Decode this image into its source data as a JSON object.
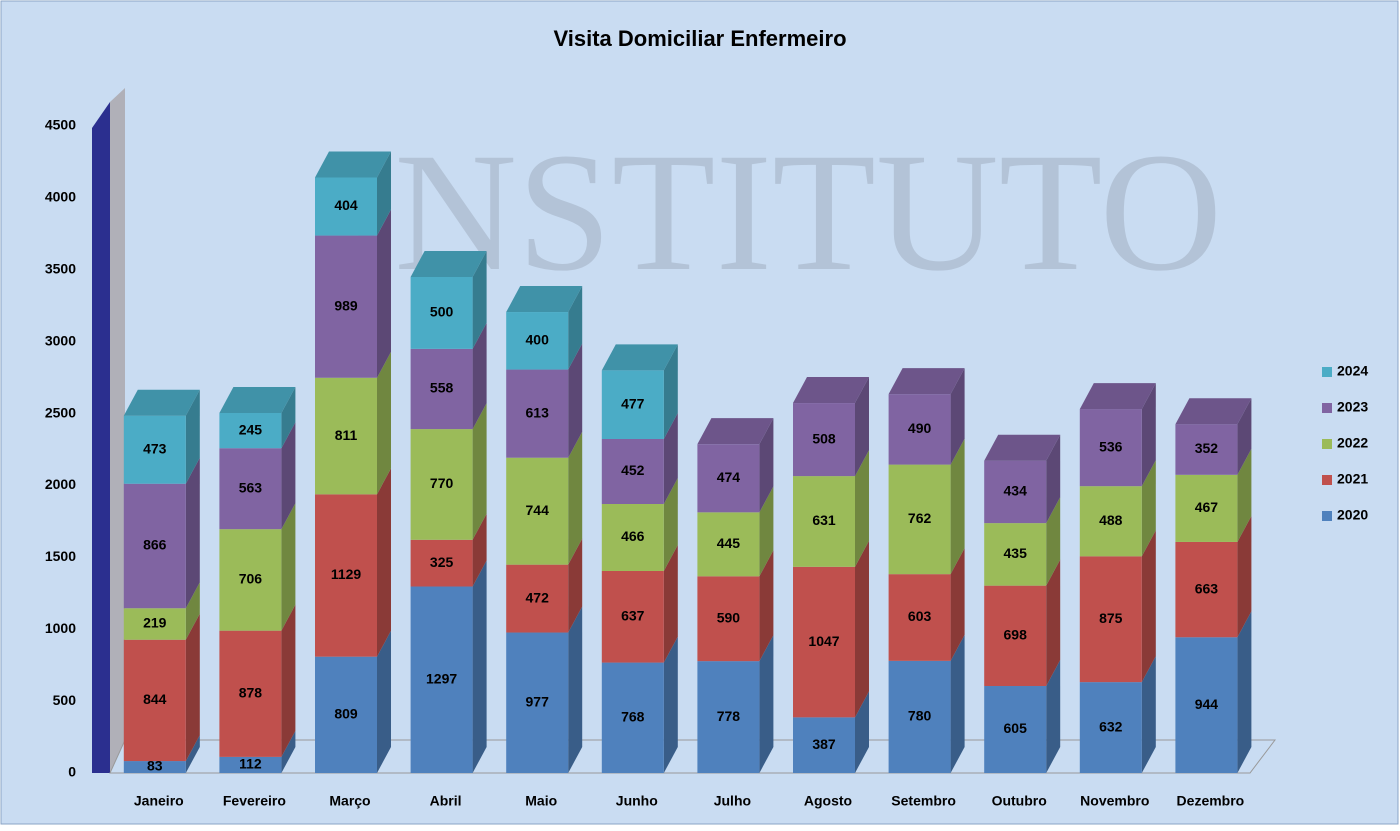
{
  "chart_data": {
    "type": "bar3d_stacked",
    "title": "Visita Domiciliar Enfermeiro",
    "watermark": "INSTITUTO",
    "categories": [
      "Janeiro",
      "Fevereiro",
      "Março",
      "Abril",
      "Maio",
      "Junho",
      "Julho",
      "Agosto",
      "Setembro",
      "Outubro",
      "Novembro",
      "Dezembro"
    ],
    "series": [
      {
        "name": "2020",
        "color": "#4f81bd",
        "values": [
          83,
          112,
          809,
          1297,
          977,
          768,
          778,
          387,
          780,
          605,
          632,
          944
        ]
      },
      {
        "name": "2021",
        "color": "#c0504d",
        "values": [
          844,
          878,
          1129,
          325,
          472,
          637,
          590,
          1047,
          603,
          698,
          875,
          663
        ]
      },
      {
        "name": "2022",
        "color": "#9bbb59",
        "values": [
          219,
          706,
          811,
          770,
          744,
          466,
          445,
          631,
          762,
          435,
          488,
          467
        ]
      },
      {
        "name": "2023",
        "color": "#8064a2",
        "values": [
          866,
          563,
          989,
          558,
          613,
          452,
          474,
          508,
          490,
          434,
          536,
          352
        ]
      },
      {
        "name": "2024",
        "color": "#4bacc6",
        "values": [
          473,
          245,
          404,
          500,
          400,
          477,
          null,
          null,
          null,
          null,
          null,
          null
        ]
      }
    ],
    "ylim": [
      0,
      4500
    ],
    "yticks": [
      0,
      500,
      1000,
      1500,
      2000,
      2500,
      3000,
      3500,
      4000,
      4500
    ],
    "grid": false,
    "legend": "right"
  }
}
